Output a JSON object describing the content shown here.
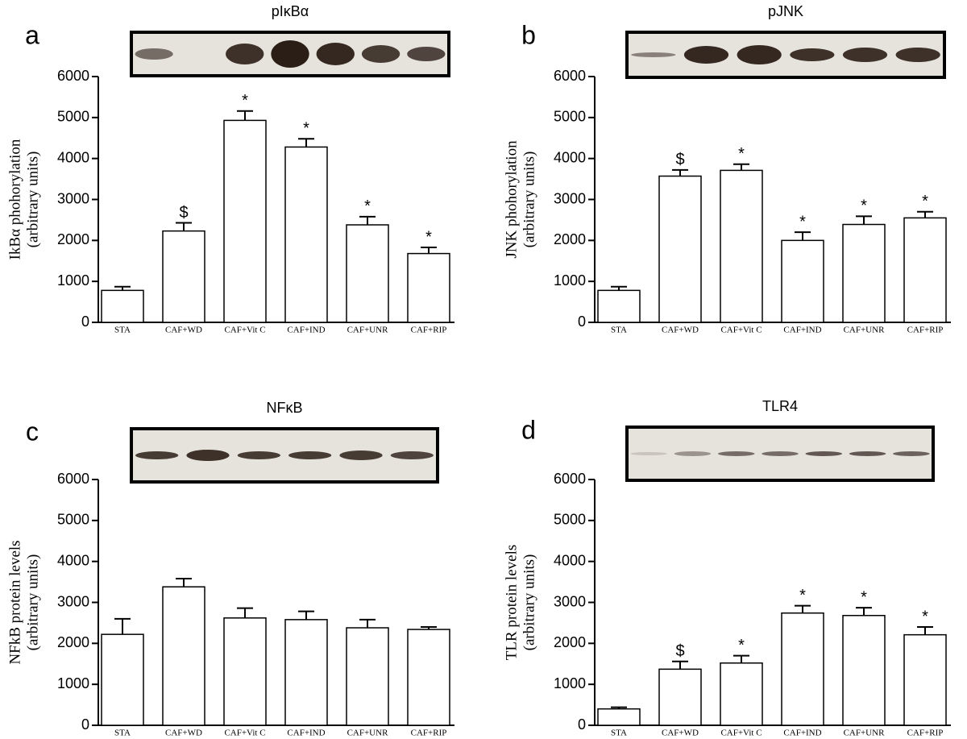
{
  "chart_data": [
    {
      "type": "bar",
      "panel": "a",
      "title": "pIκBα",
      "ylabel": [
        "IkBα phohorylation",
        "(arbitrary units)"
      ],
      "categories": [
        "STA",
        "CAF+WD",
        "CAF+Vit C",
        "CAF+IND",
        "CAF+UNR",
        "CAF+RIP"
      ],
      "values": [
        780,
        2230,
        4930,
        4280,
        2380,
        1680
      ],
      "errors": [
        90,
        200,
        230,
        200,
        200,
        150
      ],
      "annotations": [
        null,
        "$",
        "*",
        "*",
        "*",
        "*"
      ],
      "ylim": [
        0,
        6000
      ],
      "yticks": [
        0,
        1000,
        2000,
        3000,
        4000,
        5000,
        6000
      ],
      "color": "#ffffff"
    },
    {
      "type": "bar",
      "panel": "b",
      "title": "pJNK",
      "ylabel": [
        "JNK phohorylation",
        "(arbitrary units)"
      ],
      "categories": [
        "STA",
        "CAF+WD",
        "CAF+Vit C",
        "CAF+IND",
        "CAF+UNR",
        "CAF+RIP"
      ],
      "values": [
        780,
        3570,
        3710,
        2000,
        2390,
        2550
      ],
      "errors": [
        90,
        150,
        150,
        200,
        200,
        150
      ],
      "annotations": [
        null,
        "$",
        "*",
        "*",
        "*",
        "*"
      ],
      "ylim": [
        0,
        6000
      ],
      "yticks": [
        0,
        1000,
        2000,
        3000,
        4000,
        5000,
        6000
      ],
      "color": "#ffffff"
    },
    {
      "type": "bar",
      "panel": "c",
      "title": "NFκB",
      "ylabel": [
        "NFkB protein levels",
        "(arbitrary units)"
      ],
      "categories": [
        "STA",
        "CAF+WD",
        "CAF+Vit C",
        "CAF+IND",
        "CAF+UNR",
        "CAF+RIP"
      ],
      "values": [
        2220,
        3380,
        2620,
        2580,
        2380,
        2340
      ],
      "errors": [
        380,
        200,
        240,
        200,
        200,
        60
      ],
      "annotations": [
        null,
        null,
        null,
        null,
        null,
        null
      ],
      "ylim": [
        0,
        6000
      ],
      "yticks": [
        0,
        1000,
        2000,
        3000,
        4000,
        5000,
        6000
      ],
      "color": "#ffffff"
    },
    {
      "type": "bar",
      "panel": "d",
      "title": "TLR4",
      "ylabel": [
        "TLR protein levels",
        "(arbitrary units)"
      ],
      "categories": [
        "STA",
        "CAF+WD",
        "CAF+Vit C",
        "CAF+IND",
        "CAF+UNR",
        "CAF+RIP"
      ],
      "values": [
        400,
        1370,
        1520,
        2740,
        2680,
        2210
      ],
      "errors": [
        40,
        190,
        180,
        180,
        190,
        190
      ],
      "annotations": [
        null,
        "$",
        "*",
        "*",
        "*",
        "*"
      ],
      "ylim": [
        0,
        6000
      ],
      "yticks": [
        0,
        1000,
        2000,
        3000,
        4000,
        5000,
        6000
      ],
      "color": "#ffffff"
    }
  ]
}
